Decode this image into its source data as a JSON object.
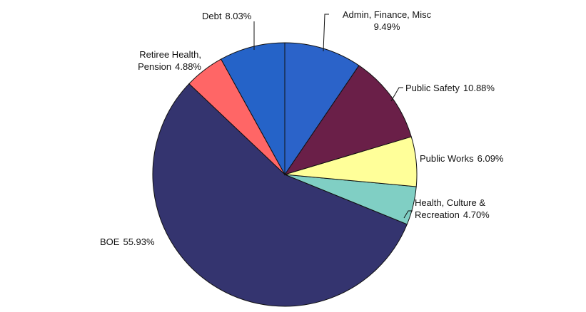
{
  "chart_data": {
    "type": "pie",
    "categories": [
      "Admin, Finance, Misc",
      "Public Safety",
      "Public Works",
      "Health, Culture & Recreation",
      "BOE",
      "Retiree Health, Pension",
      "Debt"
    ],
    "values": [
      9.49,
      10.88,
      6.09,
      4.7,
      55.93,
      4.88,
      8.03
    ],
    "value_labels": [
      "9.49%",
      "10.88%",
      "6.09%",
      "4.70%",
      "55.93%",
      "4.88%",
      "8.03%"
    ],
    "colors": [
      "#2b63c9",
      "#6a1f48",
      "#ffff99",
      "#80cfc4",
      "#34346f",
      "#ff6666",
      "#2563c8"
    ]
  }
}
